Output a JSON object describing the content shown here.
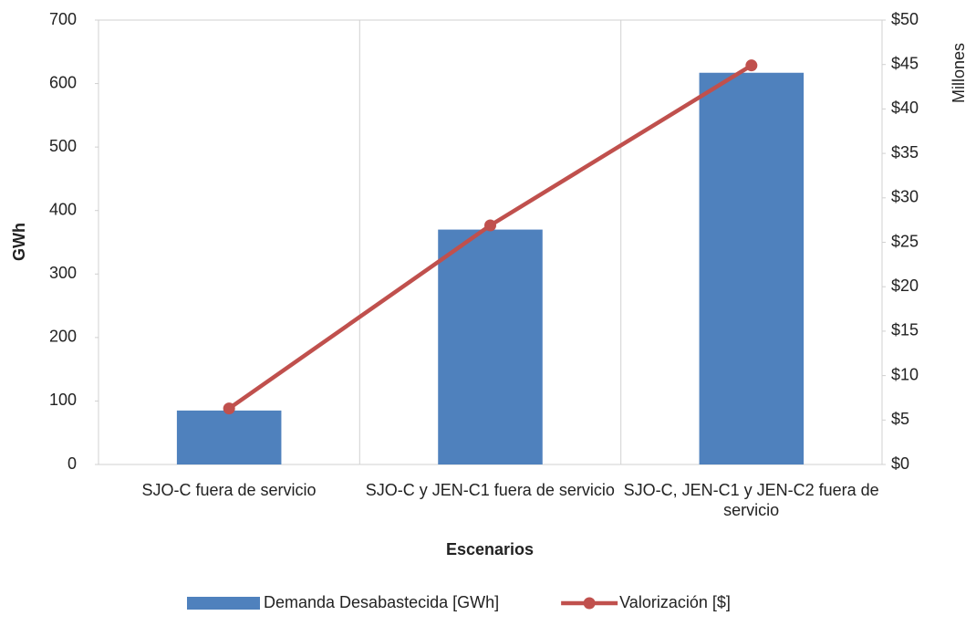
{
  "chart_data": {
    "type": "bar-line",
    "xlabel": "Escenarios",
    "ylabel": "GWh",
    "y2label": "Millones",
    "categories": [
      "SJO-C fuera de servicio",
      "SJO-C y JEN-C1 fuera de servicio",
      "SJO-C, JEN-C1 y JEN-C2 fuera de servicio"
    ],
    "series": [
      {
        "name": "Demanda Desabastecida [GWh]",
        "color": "#4f81bd",
        "type": "bar",
        "values": [
          85,
          370,
          617
        ]
      },
      {
        "name": "Valorización [$]",
        "color": "#c0504d",
        "type": "line",
        "axis": "y2",
        "values": [
          6.3,
          26.9,
          44.9
        ]
      }
    ],
    "ylim": [
      0,
      700
    ],
    "yticks": [
      0,
      100,
      200,
      300,
      400,
      500,
      600,
      700
    ],
    "y2lim": [
      0,
      50
    ],
    "y2ticks": [
      {
        "value": 0,
        "label": "$0"
      },
      {
        "value": 5,
        "label": "$5"
      },
      {
        "value": 10,
        "label": "$10"
      },
      {
        "value": 15,
        "label": "$15"
      },
      {
        "value": 20,
        "label": "$20"
      },
      {
        "value": 25,
        "label": "$25"
      },
      {
        "value": 30,
        "label": "$30"
      },
      {
        "value": 35,
        "label": "$35"
      },
      {
        "value": 40,
        "label": "$40"
      },
      {
        "value": 45,
        "label": "$45"
      },
      {
        "value": 50,
        "label": "$50"
      }
    ],
    "legend": "bottom"
  }
}
